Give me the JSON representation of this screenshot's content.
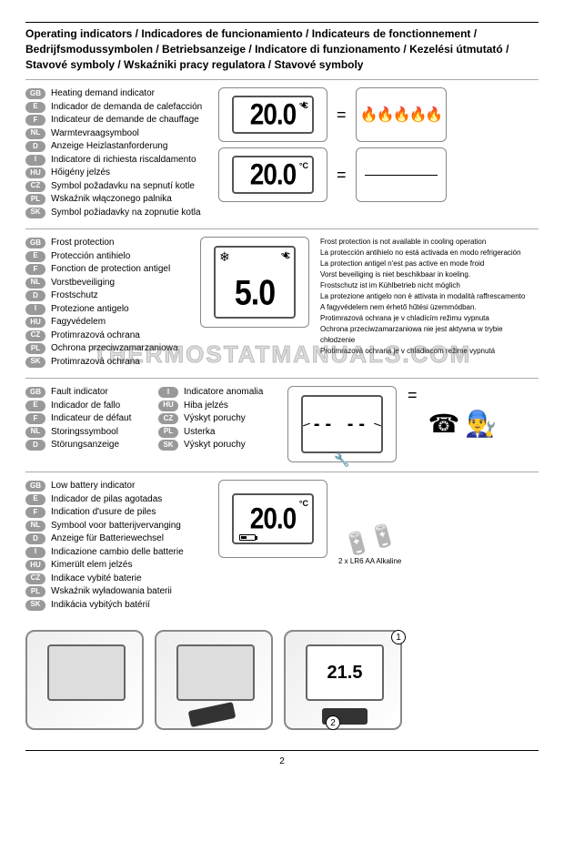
{
  "page_number": "2",
  "watermark": "THERMOSTATMANUALS.COM",
  "title": "Operating indicators / Indicadores de funcionamiento / Indicateurs de fonctionnement / Bedrijfsmodussymbolen / Betriebsanzeige / Indicatore di funzionamento / Kezelési útmutató / Stavové symboly / Wskaźniki pracy regulatora / Stavové symboly",
  "lang_codes": [
    "GB",
    "E",
    "F",
    "NL",
    "D",
    "I",
    "HU",
    "CZ",
    "PL",
    "SK"
  ],
  "section1": {
    "labels": [
      "Heating demand indicator",
      "Indicador de demanda de calefacción",
      "Indicateur de demande de chauffage",
      "Warmtevraagsymbool",
      "Anzeige Heizlastanforderung",
      "Indicatore di richiesta riscaldamento",
      "Hőigény jelzés",
      "Symbol požadavku na sepnutí kotle",
      "Wskaźnik włączonego palnika",
      "Symbol požiadavky na zopnutie kotla"
    ],
    "display_temp": "20.0",
    "unit": "°C",
    "eq": "="
  },
  "section2": {
    "labels": [
      "Frost protection",
      "Protección antihielo",
      "Fonction de protection antigel",
      "Vorstbeveiliging",
      "Frostschutz",
      "Protezione antigelo",
      "Fagyvédelem",
      "Protimrazová ochrana",
      "Ochrona przeciwzamarzaniowa",
      "Protimrazová ochrana"
    ],
    "display_temp": "5.0",
    "unit": "°C",
    "notes": [
      "Frost protection is not available in cooling operation",
      "La protección antihielo no está activada en modo refrigeración",
      "La protection antigel n'est pas active en mode froid",
      "Vorst beveiliging is niet beschikbaar in koeling.",
      "Frostschutz ist im Kühlbetrieb nicht möglich",
      "La protezione antigelo non è attivata in modalità raffrescamento",
      "A fagyvédelem nem érhető hűtési üzemmódban.",
      "Protimrazová ochrana je v chladícím režimu vypnuta",
      "Ochrona przeciwzamarzaniowa nie jest aktywna w trybie chłodzenie",
      "Protimrazová ochrana je v chladiacom režime vypnutá"
    ]
  },
  "section3": {
    "labels_a": [
      "Fault indicator",
      "Indicador de fallo",
      "Indicateur de défaut",
      "Storingssymbool",
      "Störungsanzeige"
    ],
    "codes_a": [
      "GB",
      "E",
      "F",
      "NL",
      "D"
    ],
    "labels_b": [
      "Indicatore anomalia",
      "Hiba jelzés",
      "Výskyt poruchy",
      "Usterka",
      "Výskyt poruchy"
    ],
    "codes_b": [
      "I",
      "HU",
      "CZ",
      "PL",
      "SK"
    ],
    "dashes": "-- --",
    "eq": "="
  },
  "section4": {
    "labels": [
      "Low battery indicator",
      "Indicador de pilas agotadas",
      "Indication d'usure de piles",
      "Symbool voor batterijvervanging",
      "Anzeige für Batteriewechsel",
      "Indicazione cambio delle batterie",
      "Kimerült elem jelzés",
      "Indikace vybité baterie",
      "Wskaźnik wyładowania baterii",
      "Indikácia vybitých batérií"
    ],
    "display_temp": "20.0",
    "unit": "°C",
    "batt_caption": "2 x LR6 AA Alkaline",
    "thermo3_temp": "21.5",
    "step1": "1",
    "step2": "2"
  },
  "colors": {
    "pill_bg": "#999999",
    "border": "#888888",
    "rule": "#000000"
  }
}
